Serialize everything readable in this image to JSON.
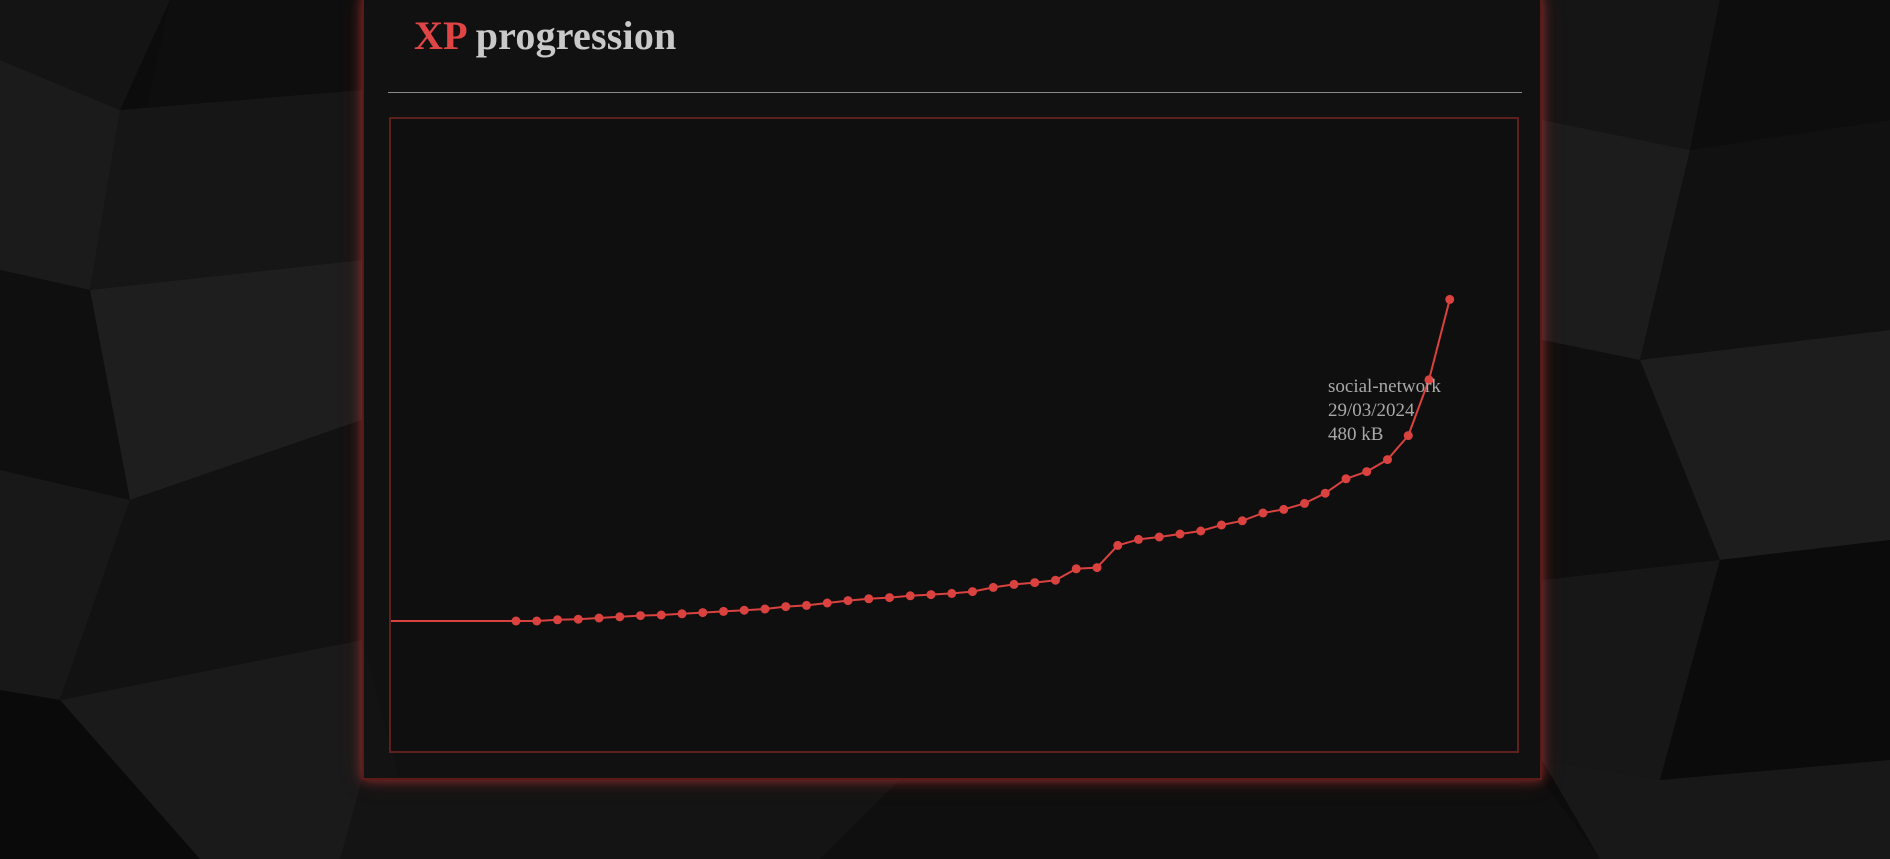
{
  "page": {
    "title_accent": "XP",
    "title_rest": "progression"
  },
  "colors": {
    "accent": "#e04545",
    "line": "#d9423f",
    "text": "#c9c9c9",
    "frame": "#5e1f1f"
  },
  "tooltip": {
    "name": "social-network",
    "date": "29/03/2024",
    "value": "480 kB"
  },
  "chart_data": {
    "type": "line",
    "title": "XP progression",
    "xlabel": "",
    "ylabel": "",
    "grid": false,
    "series": [
      {
        "values": [
          0,
          0,
          2,
          3,
          5,
          7,
          9,
          10,
          12,
          14,
          16,
          18,
          20,
          24,
          26,
          30,
          34,
          37,
          39,
          42,
          44,
          46,
          49,
          56,
          61,
          64,
          68,
          87,
          89,
          126,
          136,
          140,
          145,
          150,
          160,
          167,
          180,
          186,
          196,
          213,
          237,
          249,
          269,
          309,
          402,
          536
        ]
      }
    ]
  }
}
